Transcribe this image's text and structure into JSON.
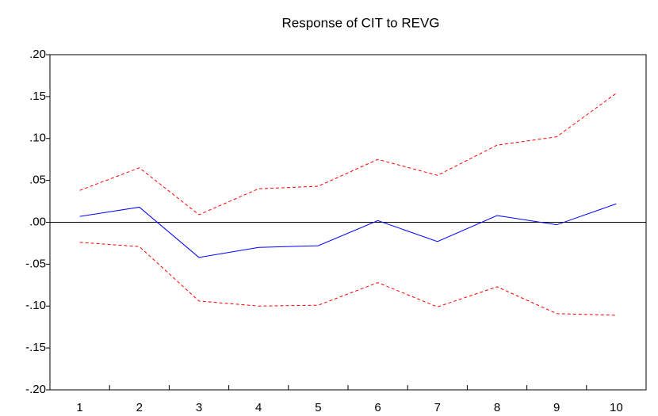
{
  "chart_data": {
    "type": "line",
    "title": "Response of CIT to REVG",
    "categories": [
      "1",
      "2",
      "3",
      "4",
      "5",
      "6",
      "7",
      "8",
      "9",
      "10"
    ],
    "series": [
      {
        "color": "#0000ff",
        "style": "solid",
        "values": [
          0.007,
          0.018,
          -0.042,
          -0.03,
          -0.028,
          0.002,
          -0.023,
          0.008,
          -0.003,
          0.022
        ]
      },
      {
        "color": "#ff0000",
        "style": "dashed",
        "values": [
          0.038,
          0.065,
          0.009,
          0.04,
          0.043,
          0.075,
          0.056,
          0.092,
          0.102,
          0.154
        ]
      },
      {
        "color": "#ff0000",
        "style": "dashed",
        "values": [
          -0.024,
          -0.029,
          -0.094,
          -0.1,
          -0.099,
          -0.072,
          -0.101,
          -0.077,
          -0.109,
          -0.111
        ]
      }
    ],
    "ylim": [
      -0.2,
      0.2
    ],
    "yticks": [
      {
        "value": -0.2,
        "label": "-.20"
      },
      {
        "value": -0.15,
        "label": "-.15"
      },
      {
        "value": -0.1,
        "label": "-.10"
      },
      {
        "value": -0.05,
        "label": "-.05"
      },
      {
        "value": 0,
        "label": ".00"
      },
      {
        "value": 0.05,
        "label": ".05"
      },
      {
        "value": 0.1,
        "label": ".10"
      },
      {
        "value": 0.15,
        "label": ".15"
      },
      {
        "value": 0.2,
        "label": ".20"
      }
    ],
    "grid": false
  }
}
